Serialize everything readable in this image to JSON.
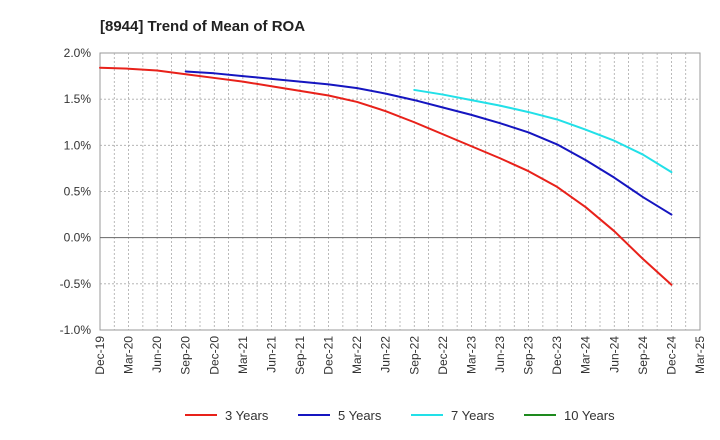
{
  "chart_data": {
    "type": "line",
    "title": "[8944]  Trend of Mean of ROA",
    "xlabel": "",
    "ylabel": "",
    "x": [
      "Dec-19",
      "Mar-20",
      "Jun-20",
      "Sep-20",
      "Dec-20",
      "Mar-21",
      "Jun-21",
      "Sep-21",
      "Dec-21",
      "Mar-22",
      "Jun-22",
      "Sep-22",
      "Dec-22",
      "Mar-23",
      "Jun-23",
      "Sep-23",
      "Dec-23",
      "Mar-24",
      "Jun-24",
      "Sep-24",
      "Dec-24",
      "Mar-25"
    ],
    "ylim": [
      -1.0,
      2.0
    ],
    "yticks": [
      2.0,
      1.5,
      1.0,
      0.5,
      0.0,
      -0.5,
      -1.0
    ],
    "ytick_labels": [
      "2.0%",
      "1.5%",
      "1.0%",
      "0.5%",
      "0.0%",
      "-0.5%",
      "-1.0%"
    ],
    "grid": true,
    "legend_position": "bottom",
    "series": [
      {
        "name": "3 Years",
        "color": "#e8211a",
        "values": [
          1.84,
          1.83,
          1.81,
          1.77,
          1.73,
          1.69,
          1.64,
          1.59,
          1.54,
          1.47,
          1.37,
          1.25,
          1.12,
          0.99,
          0.86,
          0.72,
          0.55,
          0.33,
          0.07,
          -0.23,
          -0.51,
          null
        ]
      },
      {
        "name": "5 Years",
        "color": "#1515c0",
        "values": [
          null,
          null,
          null,
          1.8,
          1.78,
          1.75,
          1.72,
          1.69,
          1.66,
          1.62,
          1.56,
          1.49,
          1.41,
          1.33,
          1.24,
          1.14,
          1.01,
          0.84,
          0.65,
          0.44,
          0.25,
          null
        ]
      },
      {
        "name": "7 Years",
        "color": "#22e0e8",
        "values": [
          null,
          null,
          null,
          null,
          null,
          null,
          null,
          null,
          null,
          null,
          null,
          1.6,
          1.55,
          1.49,
          1.43,
          1.36,
          1.28,
          1.17,
          1.05,
          0.9,
          0.71,
          null
        ]
      },
      {
        "name": "10 Years",
        "color": "#1e8a1e",
        "values": [
          null,
          null,
          null,
          null,
          null,
          null,
          null,
          null,
          null,
          null,
          null,
          null,
          null,
          null,
          null,
          null,
          null,
          null,
          null,
          null,
          null,
          null
        ]
      }
    ]
  }
}
